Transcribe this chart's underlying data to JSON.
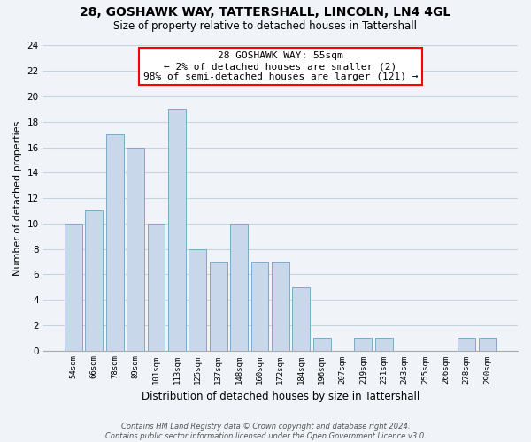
{
  "title": "28, GOSHAWK WAY, TATTERSHALL, LINCOLN, LN4 4GL",
  "subtitle": "Size of property relative to detached houses in Tattershall",
  "xlabel": "Distribution of detached houses by size in Tattershall",
  "ylabel": "Number of detached properties",
  "bar_labels": [
    "54sqm",
    "66sqm",
    "78sqm",
    "89sqm",
    "101sqm",
    "113sqm",
    "125sqm",
    "137sqm",
    "148sqm",
    "160sqm",
    "172sqm",
    "184sqm",
    "196sqm",
    "207sqm",
    "219sqm",
    "231sqm",
    "243sqm",
    "255sqm",
    "266sqm",
    "278sqm",
    "290sqm"
  ],
  "bar_values": [
    10,
    11,
    17,
    16,
    10,
    19,
    8,
    7,
    10,
    7,
    7,
    5,
    1,
    0,
    1,
    1,
    0,
    0,
    0,
    1,
    1
  ],
  "bar_color": "#c8d8ea",
  "bar_edge_color": "#7aaac8",
  "annotation_line1": "28 GOSHAWK WAY: 55sqm",
  "annotation_line2": "← 2% of detached houses are smaller (2)",
  "annotation_line3": "98% of semi-detached houses are larger (121) →",
  "annotation_box_color": "white",
  "annotation_box_edgecolor": "red",
  "ylim": [
    0,
    24
  ],
  "yticks": [
    0,
    2,
    4,
    6,
    8,
    10,
    12,
    14,
    16,
    18,
    20,
    22,
    24
  ],
  "footer_line1": "Contains HM Land Registry data © Crown copyright and database right 2024.",
  "footer_line2": "Contains public sector information licensed under the Open Government Licence v3.0.",
  "bg_color": "#f0f4f8",
  "grid_color": "#c8d4dc"
}
